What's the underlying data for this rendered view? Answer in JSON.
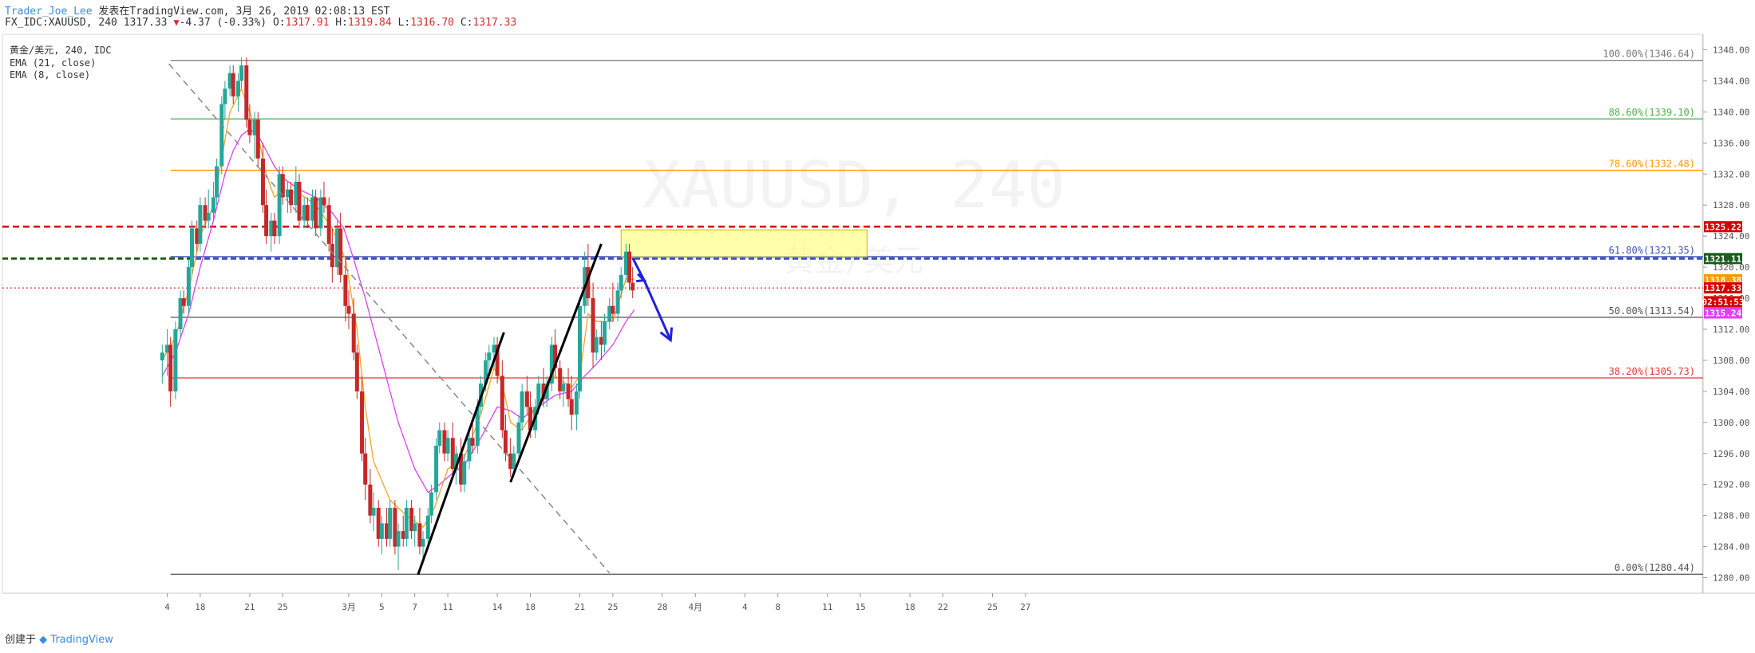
{
  "header": {
    "author": "Trader_Joe_Lee",
    "published": "发表在TradingView.com, 3月 26, 2019 02:08:13 EST",
    "symbol_line": "FX_IDC:XAUUSD, 240 1317.33",
    "change": "-4.37 (-0.33%)",
    "ohlc": {
      "o_label": "O:",
      "o": "1317.91",
      "h_label": "H:",
      "h": "1319.84",
      "l_label": "L:",
      "l": "1316.70",
      "c_label": "C:",
      "c": "1317.33"
    }
  },
  "legend": {
    "line1": "黄金/美元, 240, IDC",
    "line2": "EMA (21, close)",
    "line3": "EMA (8, close)"
  },
  "watermark": {
    "symbol": "XAUUSD, 240",
    "name": "黄金/美元"
  },
  "footer": {
    "created_with": "创建于",
    "brand": "TradingView"
  },
  "colors": {
    "up": "#26a69a",
    "down": "#c62828",
    "ema21": "#e040fb",
    "ema8": "#f5a623",
    "fib_100": "#787878",
    "fib_886": "#4caf50",
    "fib_786": "#ff9800",
    "fib_618": "#3f51b5",
    "fib_50": "#555555",
    "fib_382": "#e53935",
    "fib_0": "#555555",
    "resistance": "#d50000",
    "support": "#1b5e20",
    "zone": "#ffff66",
    "arrow": "#1e22d6"
  },
  "chart_data": {
    "type": "candlestick",
    "symbol": "FX_IDC:XAUUSD",
    "interval": "240",
    "ylim": [
      1278,
      1350
    ],
    "yticks": [
      "1348.00",
      "1344.00",
      "1340.00",
      "1336.00",
      "1332.00",
      "1328.00",
      "1324.00",
      "1320.00",
      "1316.00",
      "1312.00",
      "1308.00",
      "1304.00",
      "1300.00",
      "1296.00",
      "1292.00",
      "1288.00",
      "1284.00",
      "1280.00"
    ],
    "xticks": [
      {
        "label": "4",
        "day": -11
      },
      {
        "label": "18",
        "day": -9
      },
      {
        "label": "21",
        "day": -6
      },
      {
        "label": "25",
        "day": -4
      },
      {
        "label": "3月",
        "day": 0
      },
      {
        "label": "5",
        "day": 2
      },
      {
        "label": "7",
        "day": 4
      },
      {
        "label": "11",
        "day": 6
      },
      {
        "label": "14",
        "day": 9
      },
      {
        "label": "18",
        "day": 11
      },
      {
        "label": "21",
        "day": 14
      },
      {
        "label": "25",
        "day": 16
      },
      {
        "label": "28",
        "day": 19
      },
      {
        "label": "4月",
        "day": 21
      },
      {
        "label": "4",
        "day": 24
      },
      {
        "label": "8",
        "day": 26
      },
      {
        "label": "11",
        "day": 29
      },
      {
        "label": "15",
        "day": 31
      },
      {
        "label": "18",
        "day": 34
      },
      {
        "label": "22",
        "day": 36
      },
      {
        "label": "25",
        "day": 39
      },
      {
        "label": "27",
        "day": 41
      }
    ],
    "fib_levels": [
      {
        "label": "100.00%(1346.64)",
        "price": 1346.64,
        "colorKey": "fib_100"
      },
      {
        "label": "88.60%(1339.10)",
        "price": 1339.1,
        "colorKey": "fib_886"
      },
      {
        "label": "78.60%(1332.48)",
        "price": 1332.48,
        "colorKey": "fib_786"
      },
      {
        "label": "61.80%(1321.35)",
        "price": 1321.35,
        "colorKey": "fib_618"
      },
      {
        "label": "50.00%(1313.54)",
        "price": 1313.54,
        "colorKey": "fib_50"
      },
      {
        "label": "38.20%(1305.73)",
        "price": 1305.73,
        "colorKey": "fib_382"
      },
      {
        "label": "0.00%(1280.44)",
        "price": 1280.44,
        "colorKey": "fib_0"
      }
    ],
    "price_tags": [
      {
        "text": "1325.22",
        "price": 1325.22,
        "bg": "#d50000"
      },
      {
        "text": "1321.11",
        "price": 1321.11,
        "bg": "#1b5e20"
      },
      {
        "text": "1318.38",
        "price": 1318.38,
        "bg": "#ff9800"
      },
      {
        "text": "1317.33",
        "price": 1317.33,
        "bg": "#d50000"
      },
      {
        "text": "02:51:53",
        "price": 1315.55,
        "bg": "#d50000"
      },
      {
        "text": "1315.24",
        "price": 1314.1,
        "bg": "#e040fb"
      }
    ],
    "resistance_line": 1325.22,
    "support_line": 1321.11,
    "current_price": 1317.33,
    "zone": {
      "day_start": 16.5,
      "day_end": 31.4,
      "price_top": 1324.8,
      "price_bottom": 1321.2
    },
    "trendlines": [
      {
        "style": "dashed",
        "d1": -10.9,
        "p1": 1346.2,
        "d2": 15.8,
        "p2": 1280.6
      },
      {
        "style": "solid",
        "d1": 4.2,
        "p1": 1280.4,
        "d2": 9.4,
        "p2": 1311.6
      },
      {
        "style": "solid",
        "d1": 9.8,
        "p1": 1292.3,
        "d2": 15.3,
        "p2": 1323.0
      }
    ],
    "projection_arrow": [
      {
        "day": 17.2,
        "price": 1321.2
      },
      {
        "day": 17.9,
        "price": 1318.3
      },
      {
        "day": 19.5,
        "price": 1310.6
      }
    ],
    "candles": [
      [
        -11.3,
        1308,
        1310,
        1305,
        1309
      ],
      [
        -11.0,
        1309,
        1312,
        1306,
        1310
      ],
      [
        -10.8,
        1310,
        1311,
        1302,
        1304
      ],
      [
        -10.5,
        1304,
        1313,
        1303,
        1312
      ],
      [
        -10.2,
        1312,
        1317,
        1311,
        1316
      ],
      [
        -10.0,
        1316,
        1317,
        1314,
        1315
      ],
      [
        -9.7,
        1315,
        1321,
        1314,
        1320
      ],
      [
        -9.5,
        1320,
        1326,
        1319,
        1325
      ],
      [
        -9.2,
        1325,
        1326,
        1322,
        1323
      ],
      [
        -9.0,
        1323,
        1329,
        1322,
        1328
      ],
      [
        -8.7,
        1328,
        1329,
        1325,
        1326
      ],
      [
        -8.5,
        1326,
        1330,
        1325,
        1327
      ],
      [
        -8.2,
        1327,
        1331,
        1326,
        1329
      ],
      [
        -8.0,
        1329,
        1334,
        1328,
        1333
      ],
      [
        -7.7,
        1333,
        1342,
        1332,
        1341
      ],
      [
        -7.5,
        1341,
        1344,
        1339,
        1343
      ],
      [
        -7.2,
        1343,
        1346,
        1342,
        1345
      ],
      [
        -7.0,
        1345,
        1346,
        1341,
        1342
      ],
      [
        -6.7,
        1342,
        1345,
        1340,
        1344
      ],
      [
        -6.5,
        1344,
        1347,
        1343,
        1346
      ],
      [
        -6.2,
        1346,
        1347,
        1338,
        1339
      ],
      [
        -6.0,
        1339,
        1341,
        1336,
        1337
      ],
      [
        -5.7,
        1337,
        1340,
        1334,
        1339
      ],
      [
        -5.5,
        1339,
        1340,
        1333,
        1334
      ],
      [
        -5.2,
        1334,
        1336,
        1327,
        1328
      ],
      [
        -5.0,
        1328,
        1330,
        1323,
        1324
      ],
      [
        -4.7,
        1324,
        1327,
        1322,
        1326
      ],
      [
        -4.5,
        1326,
        1327,
        1323,
        1324
      ],
      [
        -4.2,
        1324,
        1333,
        1323,
        1332
      ],
      [
        -4.0,
        1332,
        1333,
        1328,
        1329
      ],
      [
        -3.7,
        1329,
        1331,
        1327,
        1330
      ],
      [
        -3.5,
        1330,
        1331,
        1327,
        1328
      ],
      [
        -3.2,
        1328,
        1333,
        1327,
        1331
      ],
      [
        -3.0,
        1331,
        1332,
        1325,
        1326
      ],
      [
        -2.7,
        1326,
        1329,
        1325,
        1328
      ],
      [
        -2.5,
        1328,
        1329,
        1325,
        1326
      ],
      [
        -2.2,
        1326,
        1330,
        1325,
        1329
      ],
      [
        -2.0,
        1329,
        1330,
        1324,
        1325
      ],
      [
        -1.7,
        1325,
        1330,
        1324,
        1329
      ],
      [
        -1.5,
        1329,
        1331,
        1327,
        1328
      ],
      [
        -1.2,
        1328,
        1329,
        1322,
        1323
      ],
      [
        -1.0,
        1323,
        1325,
        1318,
        1320
      ],
      [
        -0.7,
        1320,
        1326,
        1319,
        1325
      ],
      [
        -0.5,
        1325,
        1327,
        1318,
        1319
      ],
      [
        -0.2,
        1319,
        1321,
        1313,
        1315
      ],
      [
        0.0,
        1315,
        1317,
        1312,
        1314
      ],
      [
        0.3,
        1314,
        1316,
        1308,
        1309
      ],
      [
        0.5,
        1309,
        1310,
        1303,
        1304
      ],
      [
        0.8,
        1304,
        1306,
        1295,
        1296
      ],
      [
        1.0,
        1296,
        1298,
        1290,
        1292
      ],
      [
        1.3,
        1292,
        1294,
        1287,
        1288
      ],
      [
        1.5,
        1288,
        1291,
        1286,
        1289
      ],
      [
        1.8,
        1289,
        1290,
        1284,
        1285
      ],
      [
        2.0,
        1285,
        1288,
        1283,
        1287
      ],
      [
        2.3,
        1287,
        1289,
        1284,
        1285
      ],
      [
        2.5,
        1285,
        1290,
        1284,
        1289
      ],
      [
        2.8,
        1289,
        1290,
        1283,
        1284
      ],
      [
        3.0,
        1284,
        1287,
        1281,
        1286
      ],
      [
        3.3,
        1286,
        1288,
        1284,
        1285
      ],
      [
        3.5,
        1285,
        1290,
        1284,
        1289
      ],
      [
        3.8,
        1289,
        1290,
        1285,
        1286
      ],
      [
        4.0,
        1286,
        1288,
        1284,
        1287
      ],
      [
        4.3,
        1287,
        1289,
        1283,
        1284
      ],
      [
        4.5,
        1284,
        1286,
        1282,
        1285
      ],
      [
        4.8,
        1285,
        1289,
        1284,
        1288
      ],
      [
        5.0,
        1288,
        1292,
        1287,
        1291
      ],
      [
        5.3,
        1291,
        1298,
        1290,
        1297
      ],
      [
        5.5,
        1297,
        1300,
        1296,
        1299
      ],
      [
        5.8,
        1299,
        1300,
        1295,
        1296
      ],
      [
        6.0,
        1296,
        1299,
        1295,
        1298
      ],
      [
        6.3,
        1298,
        1300,
        1293,
        1294
      ],
      [
        6.5,
        1294,
        1297,
        1292,
        1296
      ],
      [
        6.8,
        1296,
        1298,
        1291,
        1292
      ],
      [
        7.0,
        1292,
        1296,
        1291,
        1295
      ],
      [
        7.3,
        1295,
        1299,
        1294,
        1298
      ],
      [
        7.5,
        1298,
        1300,
        1296,
        1297
      ],
      [
        7.8,
        1297,
        1303,
        1296,
        1302
      ],
      [
        8.0,
        1302,
        1306,
        1301,
        1305
      ],
      [
        8.3,
        1305,
        1309,
        1304,
        1308
      ],
      [
        8.5,
        1308,
        1310,
        1306,
        1309
      ],
      [
        8.8,
        1309,
        1311,
        1307,
        1310
      ],
      [
        9.0,
        1310,
        1311,
        1305,
        1306
      ],
      [
        9.3,
        1306,
        1308,
        1298,
        1299
      ],
      [
        9.5,
        1299,
        1301,
        1295,
        1296
      ],
      [
        9.8,
        1296,
        1298,
        1293,
        1294
      ],
      [
        10.0,
        1294,
        1297,
        1293,
        1296
      ],
      [
        10.3,
        1296,
        1301,
        1295,
        1300
      ],
      [
        10.5,
        1300,
        1305,
        1299,
        1304
      ],
      [
        10.8,
        1304,
        1306,
        1301,
        1302
      ],
      [
        11.0,
        1302,
        1304,
        1298,
        1299
      ],
      [
        11.3,
        1299,
        1303,
        1298,
        1302
      ],
      [
        11.5,
        1302,
        1306,
        1301,
        1305
      ],
      [
        11.8,
        1305,
        1307,
        1302,
        1303
      ],
      [
        12.0,
        1303,
        1306,
        1302,
        1305
      ],
      [
        12.3,
        1305,
        1311,
        1304,
        1310
      ],
      [
        12.5,
        1310,
        1312,
        1306,
        1307
      ],
      [
        12.8,
        1307,
        1308,
        1303,
        1304
      ],
      [
        13.0,
        1304,
        1306,
        1302,
        1305
      ],
      [
        13.3,
        1305,
        1307,
        1302,
        1303
      ],
      [
        13.5,
        1303,
        1306,
        1299,
        1301
      ],
      [
        13.8,
        1301,
        1305,
        1299,
        1304
      ],
      [
        14.0,
        1304,
        1316,
        1303,
        1315
      ],
      [
        14.3,
        1315,
        1322,
        1314,
        1320
      ],
      [
        14.5,
        1320,
        1323,
        1315,
        1316
      ],
      [
        14.8,
        1316,
        1318,
        1307,
        1309
      ],
      [
        15.0,
        1309,
        1312,
        1308,
        1311
      ],
      [
        15.3,
        1311,
        1313,
        1308,
        1310
      ],
      [
        15.5,
        1310,
        1314,
        1309,
        1313
      ],
      [
        15.8,
        1313,
        1316,
        1312,
        1315
      ],
      [
        16.0,
        1315,
        1318,
        1313,
        1314
      ],
      [
        16.3,
        1314,
        1318,
        1313,
        1317
      ],
      [
        16.5,
        1317,
        1320,
        1316,
        1319
      ],
      [
        16.8,
        1319,
        1323,
        1318,
        1322
      ],
      [
        17.0,
        1322,
        1323,
        1317,
        1318
      ],
      [
        17.2,
        1318,
        1320,
        1316,
        1317
      ]
    ],
    "ema21": [
      [
        -11.3,
        1306
      ],
      [
        -10.5,
        1309
      ],
      [
        -9.7,
        1314
      ],
      [
        -9.0,
        1320
      ],
      [
        -8.2,
        1326
      ],
      [
        -7.5,
        1332
      ],
      [
        -7.0,
        1335
      ],
      [
        -6.5,
        1337
      ],
      [
        -6.0,
        1337.8
      ],
      [
        -5.5,
        1337
      ],
      [
        -5.0,
        1335
      ],
      [
        -4.5,
        1333
      ],
      [
        -4.0,
        1331.5
      ],
      [
        -3.0,
        1330
      ],
      [
        -2.0,
        1329
      ],
      [
        -1.0,
        1327
      ],
      [
        -0.3,
        1325
      ],
      [
        0.3,
        1321
      ],
      [
        1.0,
        1316
      ],
      [
        2.0,
        1308
      ],
      [
        3.0,
        1300
      ],
      [
        4.0,
        1294
      ],
      [
        4.8,
        1291
      ],
      [
        5.5,
        1292
      ],
      [
        6.3,
        1293.5
      ],
      [
        7.0,
        1294.5
      ],
      [
        8.0,
        1298
      ],
      [
        9.0,
        1302
      ],
      [
        9.8,
        1301.5
      ],
      [
        10.5,
        1300.5
      ],
      [
        11.5,
        1302
      ],
      [
        12.5,
        1303.5
      ],
      [
        13.5,
        1304
      ],
      [
        14.3,
        1306
      ],
      [
        15.0,
        1307.5
      ],
      [
        16.0,
        1310
      ],
      [
        16.8,
        1313
      ],
      [
        17.3,
        1314.5
      ]
    ],
    "ema8": [
      [
        -11.3,
        1308
      ],
      [
        -10.5,
        1311
      ],
      [
        -9.7,
        1317
      ],
      [
        -9.0,
        1324
      ],
      [
        -8.2,
        1328
      ],
      [
        -7.7,
        1334
      ],
      [
        -7.2,
        1340
      ],
      [
        -6.5,
        1343
      ],
      [
        -6.0,
        1340
      ],
      [
        -5.5,
        1337
      ],
      [
        -5.0,
        1332
      ],
      [
        -4.5,
        1329
      ],
      [
        -4.0,
        1330
      ],
      [
        -3.0,
        1329.5
      ],
      [
        -2.0,
        1328
      ],
      [
        -1.0,
        1325
      ],
      [
        -0.2,
        1321
      ],
      [
        0.5,
        1312
      ],
      [
        1.0,
        1302
      ],
      [
        1.5,
        1295
      ],
      [
        2.5,
        1290
      ],
      [
        3.5,
        1288
      ],
      [
        4.5,
        1286.5
      ],
      [
        5.2,
        1289
      ],
      [
        6.0,
        1294
      ],
      [
        7.0,
        1295.5
      ],
      [
        8.0,
        1301
      ],
      [
        8.8,
        1307
      ],
      [
        9.3,
        1305
      ],
      [
        9.8,
        1300
      ],
      [
        10.5,
        1299
      ],
      [
        11.5,
        1302.5
      ],
      [
        12.5,
        1306
      ],
      [
        13.5,
        1304.5
      ],
      [
        14.0,
        1306
      ],
      [
        14.5,
        1314
      ],
      [
        15.0,
        1313
      ],
      [
        16.0,
        1313
      ],
      [
        16.8,
        1318.5
      ],
      [
        17.3,
        1318.4
      ]
    ]
  }
}
